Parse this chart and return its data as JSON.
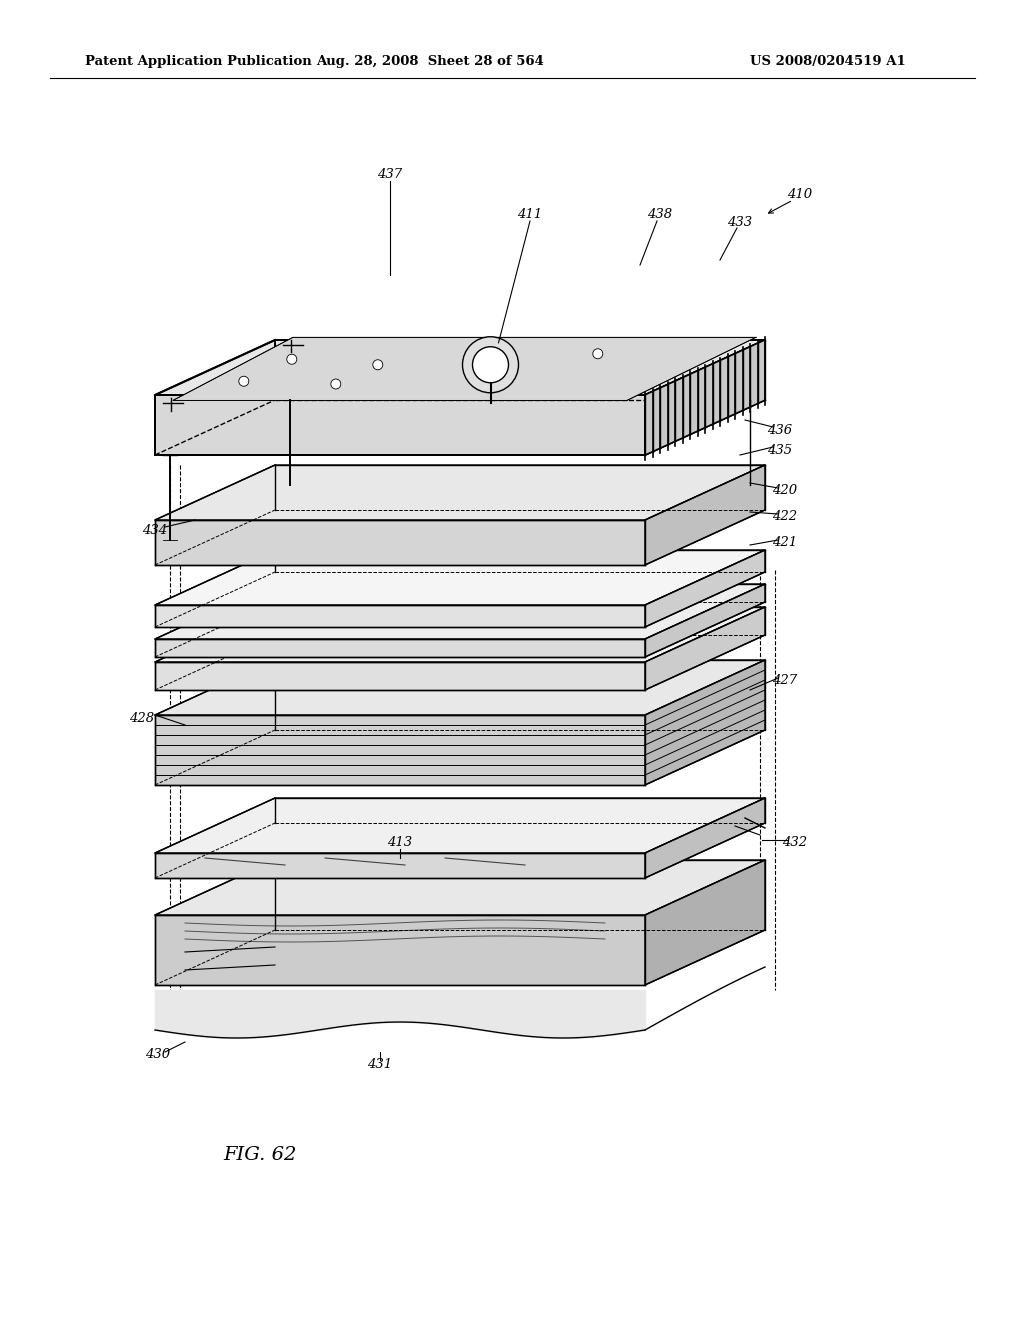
{
  "header_left": "Patent Application Publication",
  "header_mid": "Aug. 28, 2008  Sheet 28 of 564",
  "header_right": "US 2008/0204519 A1",
  "figure_label": "FIG. 62",
  "background_color": "#ffffff",
  "line_color": "#000000",
  "label_color": "#000000",
  "components": {
    "lid_label": "410",
    "top_surface_label": "437",
    "port_label": "411",
    "right_frame_label": "438",
    "right_corner_label": "433",
    "left_flat_label": "434",
    "rib_top_label": "436",
    "rib_bot_label": "435",
    "layer_top_label": "420",
    "layer_mid_label": "422",
    "layer_bot_label": "421",
    "multi_left_label": "428",
    "multi_right_label": "427",
    "thin_label": "413",
    "thin_right_label": "432",
    "base_left_label": "430",
    "base_mid_label": "431"
  }
}
